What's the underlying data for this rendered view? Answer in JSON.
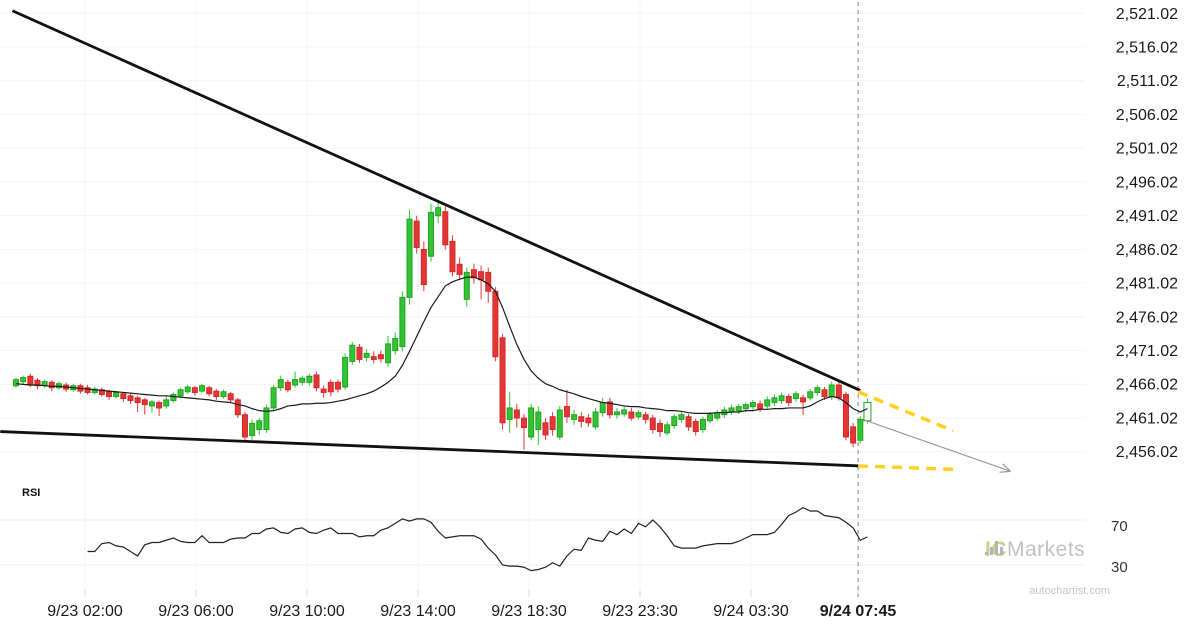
{
  "attribution": "autochartist.com",
  "watermark": {
    "ic": "IC",
    "markets": "Markets"
  },
  "rsi_panel": {
    "label": "RSI",
    "levels": [
      "70",
      "30"
    ]
  },
  "colors": {
    "bull": "#33c433",
    "bull_stroke": "#22a322",
    "bear": "#e53535",
    "bear_stroke": "#cf2b2b",
    "ma_line": "#1a1a1a",
    "rsi_line": "#222222",
    "trendline": "#111111",
    "forecast_dash": "#ffd020",
    "arrow": "#9a9a9a",
    "vline": "#808080",
    "grid": "#f4f4f4",
    "axis_text": "#1a1a1a",
    "tick": "#d8d8d8"
  },
  "chart_data": {
    "type": "candlestick",
    "price_axis": {
      "labels": [
        "2,521.02",
        "2,516.02",
        "2,511.02",
        "2,506.02",
        "2,501.02",
        "2,496.02",
        "2,491.02",
        "2,486.02",
        "2,481.02",
        "2,476.02",
        "2,471.02",
        "2,466.02",
        "2,461.02",
        "2,456.02"
      ],
      "step": 5
    },
    "time_axis": {
      "labels": [
        "9/23 02:00",
        "9/23 06:00",
        "9/23 10:00",
        "9/23 14:00",
        "9/23 18:30",
        "9/23 23:30",
        "9/24 03:30",
        "9/24 07:45"
      ],
      "emphasized_index": 7
    },
    "last_candle_forming": true,
    "candles": [
      [
        2465.8,
        2467.0,
        2465.5,
        2466.7
      ],
      [
        2466.4,
        2467.3,
        2465.9,
        2467.0
      ],
      [
        2467.2,
        2467.6,
        2465.6,
        2465.9
      ],
      [
        2466.6,
        2466.9,
        2465.3,
        2465.8
      ],
      [
        2465.8,
        2466.7,
        2465.5,
        2466.4
      ],
      [
        2466.3,
        2466.6,
        2465.0,
        2465.5
      ],
      [
        2465.5,
        2466.4,
        2465.2,
        2466.1
      ],
      [
        2465.9,
        2466.3,
        2464.9,
        2465.3
      ],
      [
        2465.2,
        2466.1,
        2464.9,
        2465.8
      ],
      [
        2465.8,
        2466.1,
        2464.6,
        2465.0
      ],
      [
        2465.5,
        2465.9,
        2464.5,
        2464.8
      ],
      [
        2464.8,
        2465.6,
        2464.5,
        2465.3
      ],
      [
        2465.2,
        2465.5,
        2464.2,
        2464.5
      ],
      [
        2464.9,
        2465.2,
        2463.7,
        2464.2
      ],
      [
        2464.2,
        2465.0,
        2463.9,
        2464.8
      ],
      [
        2464.6,
        2464.9,
        2463.4,
        2463.9
      ],
      [
        2464.3,
        2464.6,
        2463.1,
        2463.6
      ],
      [
        2464.0,
        2464.3,
        2461.9,
        2463.3
      ],
      [
        2463.7,
        2464.0,
        2461.5,
        2463.0
      ],
      [
        2462.8,
        2463.7,
        2461.8,
        2463.4
      ],
      [
        2463.3,
        2463.6,
        2461.3,
        2462.5
      ],
      [
        2462.8,
        2464.2,
        2462.4,
        2463.7
      ],
      [
        2463.6,
        2464.8,
        2463.3,
        2464.5
      ],
      [
        2464.3,
        2465.5,
        2464.0,
        2465.2
      ],
      [
        2464.9,
        2465.9,
        2464.6,
        2465.6
      ],
      [
        2465.5,
        2465.8,
        2464.3,
        2464.8
      ],
      [
        2465.0,
        2466.1,
        2464.8,
        2465.8
      ],
      [
        2465.5,
        2465.8,
        2464.2,
        2464.6
      ],
      [
        2465.0,
        2465.3,
        2463.7,
        2464.2
      ],
      [
        2464.2,
        2465.2,
        2463.9,
        2464.9
      ],
      [
        2464.6,
        2464.9,
        2463.3,
        2463.7
      ],
      [
        2463.7,
        2464.0,
        2461.0,
        2461.5
      ],
      [
        2461.5,
        2461.9,
        2457.7,
        2458.2
      ],
      [
        2458.4,
        2460.8,
        2457.3,
        2460.2
      ],
      [
        2459.3,
        2461.0,
        2458.5,
        2460.6
      ],
      [
        2459.3,
        2463.0,
        2458.8,
        2462.5
      ],
      [
        2462.5,
        2465.9,
        2462.1,
        2465.5
      ],
      [
        2465.5,
        2467.3,
        2465.0,
        2466.7
      ],
      [
        2466.3,
        2466.7,
        2464.8,
        2465.2
      ],
      [
        2465.9,
        2467.9,
        2465.5,
        2466.7
      ],
      [
        2466.3,
        2467.3,
        2465.8,
        2466.9
      ],
      [
        2466.3,
        2467.6,
        2465.8,
        2467.2
      ],
      [
        2467.4,
        2467.9,
        2465.0,
        2465.5
      ],
      [
        2465.3,
        2465.8,
        2464.0,
        2464.8
      ],
      [
        2466.3,
        2466.7,
        2464.2,
        2464.9
      ],
      [
        2466.3,
        2466.7,
        2464.8,
        2465.3
      ],
      [
        2465.6,
        2470.6,
        2465.2,
        2470.0
      ],
      [
        2469.4,
        2472.3,
        2468.9,
        2471.8
      ],
      [
        2471.5,
        2472.0,
        2469.2,
        2469.7
      ],
      [
        2470.0,
        2471.2,
        2469.4,
        2470.6
      ],
      [
        2470.1,
        2470.9,
        2469.1,
        2469.7
      ],
      [
        2470.4,
        2471.0,
        2469.2,
        2469.8
      ],
      [
        2469.2,
        2473.2,
        2468.6,
        2472.0
      ],
      [
        2471.0,
        2473.7,
        2470.4,
        2472.8
      ],
      [
        2471.6,
        2479.8,
        2470.9,
        2478.9
      ],
      [
        2478.9,
        2491.9,
        2477.8,
        2490.5
      ],
      [
        2490.2,
        2491.0,
        2485.4,
        2486.3
      ],
      [
        2486.0,
        2487.2,
        2479.8,
        2480.8
      ],
      [
        2485.0,
        2492.8,
        2484.2,
        2491.5
      ],
      [
        2491.0,
        2493.3,
        2489.9,
        2492.2
      ],
      [
        2491.6,
        2492.5,
        2486.0,
        2486.7
      ],
      [
        2487.2,
        2488.1,
        2482.0,
        2482.7
      ],
      [
        2483.8,
        2484.8,
        2481.5,
        2482.3
      ],
      [
        2478.6,
        2483.3,
        2477.5,
        2482.6
      ],
      [
        2483.0,
        2483.9,
        2480.9,
        2481.8
      ],
      [
        2482.7,
        2483.6,
        2478.6,
        2481.5
      ],
      [
        2482.6,
        2483.3,
        2478.1,
        2479.8
      ],
      [
        2479.8,
        2480.4,
        2469.4,
        2470.1
      ],
      [
        2472.9,
        2473.5,
        2459.3,
        2460.3
      ],
      [
        2460.8,
        2464.9,
        2458.8,
        2462.5
      ],
      [
        2462.2,
        2463.1,
        2459.6,
        2461.0
      ],
      [
        2461.0,
        2461.6,
        2456.3,
        2459.6
      ],
      [
        2458.2,
        2463.1,
        2457.7,
        2462.5
      ],
      [
        2459.3,
        2462.7,
        2457.0,
        2461.9
      ],
      [
        2460.3,
        2461.0,
        2457.8,
        2458.5
      ],
      [
        2461.2,
        2461.9,
        2458.4,
        2459.3
      ],
      [
        2458.2,
        2462.8,
        2457.8,
        2462.2
      ],
      [
        2462.7,
        2465.2,
        2460.3,
        2461.2
      ],
      [
        2460.8,
        2462.2,
        2460.0,
        2461.5
      ],
      [
        2461.2,
        2461.9,
        2459.6,
        2460.5
      ],
      [
        2461.0,
        2461.6,
        2459.7,
        2460.3
      ],
      [
        2459.7,
        2462.5,
        2459.3,
        2461.9
      ],
      [
        2461.8,
        2464.0,
        2461.2,
        2463.3
      ],
      [
        2463.4,
        2464.0,
        2460.9,
        2461.5
      ],
      [
        2461.5,
        2462.5,
        2460.9,
        2461.9
      ],
      [
        2461.6,
        2462.8,
        2461.2,
        2462.2
      ],
      [
        2461.9,
        2462.5,
        2460.6,
        2461.0
      ],
      [
        2461.2,
        2462.2,
        2460.8,
        2461.8
      ],
      [
        2461.5,
        2461.9,
        2460.2,
        2460.8
      ],
      [
        2461.0,
        2461.5,
        2458.7,
        2459.3
      ],
      [
        2460.2,
        2460.8,
        2458.2,
        2459.0
      ],
      [
        2458.8,
        2460.5,
        2458.4,
        2460.0
      ],
      [
        2459.9,
        2461.6,
        2459.4,
        2461.2
      ],
      [
        2460.8,
        2461.9,
        2460.3,
        2461.5
      ],
      [
        2461.2,
        2461.6,
        2459.1,
        2459.7
      ],
      [
        2460.5,
        2460.9,
        2458.4,
        2459.0
      ],
      [
        2459.3,
        2461.2,
        2458.8,
        2460.8
      ],
      [
        2460.6,
        2461.9,
        2460.2,
        2461.5
      ],
      [
        2461.0,
        2462.2,
        2460.6,
        2461.8
      ],
      [
        2461.5,
        2462.7,
        2461.0,
        2462.2
      ],
      [
        2461.9,
        2463.0,
        2461.5,
        2462.5
      ],
      [
        2462.1,
        2463.1,
        2461.6,
        2462.7
      ],
      [
        2462.4,
        2463.4,
        2461.9,
        2463.0
      ],
      [
        2462.7,
        2463.7,
        2462.2,
        2463.3
      ],
      [
        2463.1,
        2463.6,
        2461.9,
        2462.4
      ],
      [
        2462.8,
        2464.2,
        2462.4,
        2463.7
      ],
      [
        2463.3,
        2464.5,
        2462.8,
        2464.0
      ],
      [
        2463.6,
        2464.8,
        2463.1,
        2464.3
      ],
      [
        2464.2,
        2464.6,
        2462.8,
        2463.3
      ],
      [
        2463.9,
        2465.0,
        2463.4,
        2464.6
      ],
      [
        2464.0,
        2464.5,
        2461.5,
        2463.4
      ],
      [
        2464.0,
        2465.3,
        2463.6,
        2464.9
      ],
      [
        2464.8,
        2465.9,
        2464.3,
        2465.5
      ],
      [
        2465.2,
        2465.6,
        2463.7,
        2464.2
      ],
      [
        2464.2,
        2466.4,
        2463.7,
        2465.9
      ],
      [
        2465.9,
        2466.7,
        2463.6,
        2464.0
      ],
      [
        2464.5,
        2464.9,
        2457.7,
        2458.2
      ],
      [
        2459.7,
        2460.3,
        2456.7,
        2457.3
      ],
      [
        2457.7,
        2461.3,
        2457.2,
        2460.8
      ],
      [
        2460.6,
        2463.9,
        2460.2,
        2463.3
      ]
    ],
    "ma": [
      2466.1,
      2466.0,
      2465.9,
      2465.9,
      2465.8,
      2465.7,
      2465.7,
      2465.6,
      2465.5,
      2465.4,
      2465.3,
      2465.2,
      2465.1,
      2465.0,
      2464.9,
      2464.8,
      2464.7,
      2464.6,
      2464.5,
      2464.4,
      2464.3,
      2464.3,
      2464.2,
      2464.1,
      2464.0,
      2463.9,
      2463.8,
      2463.7,
      2463.5,
      2463.4,
      2463.3,
      2463.0,
      2462.8,
      2462.4,
      2462.1,
      2462.0,
      2462.1,
      2462.4,
      2462.8,
      2462.9,
      2463.1,
      2463.1,
      2463.2,
      2463.2,
      2463.3,
      2463.5,
      2463.7,
      2464.0,
      2464.3,
      2464.6,
      2465.0,
      2465.6,
      2466.3,
      2467.2,
      2468.8,
      2470.9,
      2473.1,
      2475.3,
      2477.4,
      2479.0,
      2480.6,
      2481.2,
      2481.6,
      2481.9,
      2481.9,
      2481.5,
      2480.9,
      2479.8,
      2477.4,
      2474.6,
      2471.9,
      2469.7,
      2468.0,
      2466.9,
      2466.1,
      2465.7,
      2465.2,
      2464.9,
      2464.6,
      2464.2,
      2463.9,
      2463.6,
      2463.3,
      2463.2,
      2463.0,
      2462.8,
      2462.7,
      2462.7,
      2462.5,
      2462.4,
      2462.3,
      2462.1,
      2462.1,
      2462.0,
      2461.8,
      2461.7,
      2461.7,
      2461.7,
      2461.8,
      2461.8,
      2461.9,
      2461.9,
      2462.1,
      2462.1,
      2462.3,
      2462.3,
      2462.4,
      2462.4,
      2462.5,
      2462.5,
      2462.5,
      2462.8,
      2463.4,
      2463.9,
      2464.2,
      2464.0,
      2463.3,
      2462.4,
      2461.9,
      2462.4
    ],
    "rsi": {
      "name": "RSI",
      "overbought": 70,
      "oversold": 30,
      "start_index": 10,
      "values": [
        42,
        42,
        49,
        50,
        47,
        46,
        42,
        38,
        48,
        50,
        50,
        52,
        54,
        51,
        50,
        50,
        56,
        50,
        50,
        50,
        53,
        54,
        54,
        58,
        58,
        62,
        63,
        59,
        58,
        62,
        63,
        59,
        58,
        61,
        63,
        58,
        58,
        58,
        55,
        56,
        56,
        61,
        63,
        67,
        71,
        69,
        71,
        71,
        68,
        60,
        54,
        55,
        56,
        56,
        56,
        53,
        45,
        39,
        30,
        29,
        29,
        28,
        25,
        26,
        28,
        32,
        29,
        38,
        44,
        43,
        54,
        52,
        51,
        60,
        57,
        62,
        58,
        67,
        64,
        70,
        64,
        56,
        47,
        45,
        45,
        45,
        47,
        48,
        49,
        49,
        49,
        51,
        54,
        57,
        57,
        57,
        59,
        66,
        74,
        77,
        81,
        78,
        78,
        74,
        73,
        72,
        68,
        63,
        52,
        55
      ]
    },
    "pattern": {
      "type": "descending-wedge",
      "upper_trendline": {
        "i1": -0.5,
        "p1": 2521.4,
        "i2": 118.0,
        "p2": 2465.1
      },
      "lower_trendline": {
        "i1": -2.2,
        "p1": 2459.0,
        "i2": 118.0,
        "p2": 2453.9
      },
      "forecast_upper": {
        "i1": 117.7,
        "p1": 2464.9,
        "i2": 131.0,
        "p2": 2459.1
      },
      "forecast_lower": {
        "i1": 117.7,
        "p1": 2453.9,
        "i2": 131.0,
        "p2": 2453.4
      },
      "arrow": {
        "i1": 118.6,
        "p1": 2460.7,
        "i2": 139.0,
        "p2": 2453.1
      },
      "vline_index": 117.7
    }
  }
}
